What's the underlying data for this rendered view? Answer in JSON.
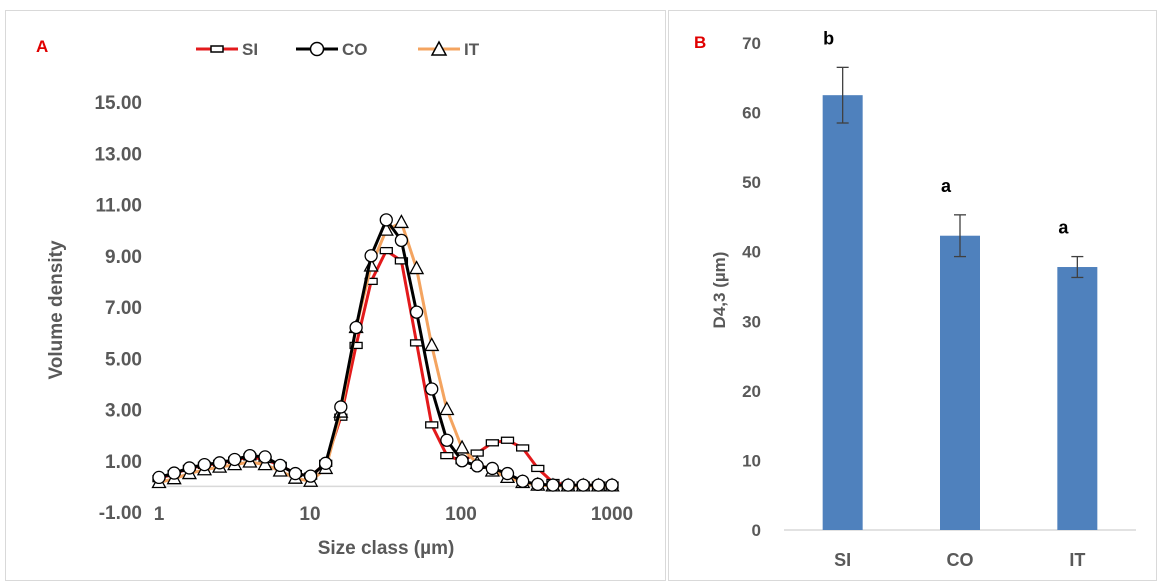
{
  "panel_a": {
    "letter": "A",
    "legend": [
      "SI",
      "CO",
      "IT"
    ],
    "xlabel": "Size class (µm)",
    "ylabel": "Volume density",
    "yticks": [
      "-1.00",
      "1.00",
      "3.00",
      "5.00",
      "7.00",
      "9.00",
      "11.00",
      "13.00",
      "15.00"
    ],
    "xticks": [
      "1",
      "10",
      "100",
      "1000"
    ]
  },
  "panel_b": {
    "letter": "B",
    "ylabel": "D4,3 (µm)",
    "yticks": [
      "0",
      "10",
      "20",
      "30",
      "40",
      "50",
      "60",
      "70"
    ]
  },
  "colors": {
    "SI": "#e31a1c",
    "CO": "#000000",
    "IT": "#f4a460",
    "bar": "#4f81bd",
    "letter": "#e00000",
    "text": "#595959",
    "axis": "#d9d9d9"
  },
  "chart_data": [
    {
      "type": "line",
      "title": "",
      "xlabel": "Size class (µm)",
      "ylabel": "Volume density",
      "xscale": "log",
      "xlim": [
        1,
        1000
      ],
      "ylim": [
        -1,
        15
      ],
      "grid": false,
      "legend_position": "top",
      "x": [
        1,
        1.26,
        1.59,
        2,
        2.52,
        3.17,
        4,
        5.04,
        6.35,
        8,
        10.1,
        12.7,
        16,
        20.2,
        25.4,
        32,
        40.3,
        50.8,
        64,
        80.6,
        101.6,
        128,
        161.3,
        203.2,
        256,
        322.5,
        406.4,
        512,
        645,
        812.7,
        1000
      ],
      "series": [
        {
          "name": "SI",
          "values": [
            0.3,
            0.5,
            0.7,
            0.82,
            0.9,
            1.02,
            1.15,
            1.05,
            0.82,
            0.5,
            0.4,
            0.9,
            2.7,
            5.5,
            8.0,
            9.2,
            8.8,
            5.6,
            2.4,
            1.2,
            1.0,
            1.3,
            1.7,
            1.8,
            1.5,
            0.7,
            0.15,
            0.05,
            0.05,
            0.05,
            0.05
          ]
        },
        {
          "name": "CO",
          "values": [
            0.35,
            0.52,
            0.72,
            0.85,
            0.92,
            1.05,
            1.2,
            1.15,
            0.82,
            0.5,
            0.4,
            0.9,
            3.1,
            6.2,
            9.0,
            10.4,
            9.6,
            6.8,
            3.8,
            1.8,
            1.0,
            0.8,
            0.7,
            0.5,
            0.2,
            0.08,
            0.05,
            0.05,
            0.05,
            0.05,
            0.05
          ]
        },
        {
          "name": "IT",
          "values": [
            0.15,
            0.3,
            0.5,
            0.65,
            0.75,
            0.85,
            0.95,
            0.85,
            0.6,
            0.32,
            0.2,
            0.7,
            2.9,
            6.2,
            8.6,
            10.0,
            10.3,
            8.5,
            5.5,
            3.0,
            1.5,
            0.9,
            0.6,
            0.35,
            0.15,
            0.05,
            0.02,
            0.02,
            0.02,
            0.02,
            0.02
          ]
        }
      ]
    },
    {
      "type": "bar",
      "title": "",
      "xlabel": "",
      "ylabel": "D4,3 (µm)",
      "ylim": [
        0,
        70
      ],
      "grid": false,
      "categories": [
        "SI",
        "CO",
        "IT"
      ],
      "values": [
        62.5,
        42.3,
        37.8
      ],
      "errors": [
        4.0,
        3.0,
        1.5
      ],
      "annotations": [
        "b",
        "a",
        "a"
      ]
    }
  ]
}
